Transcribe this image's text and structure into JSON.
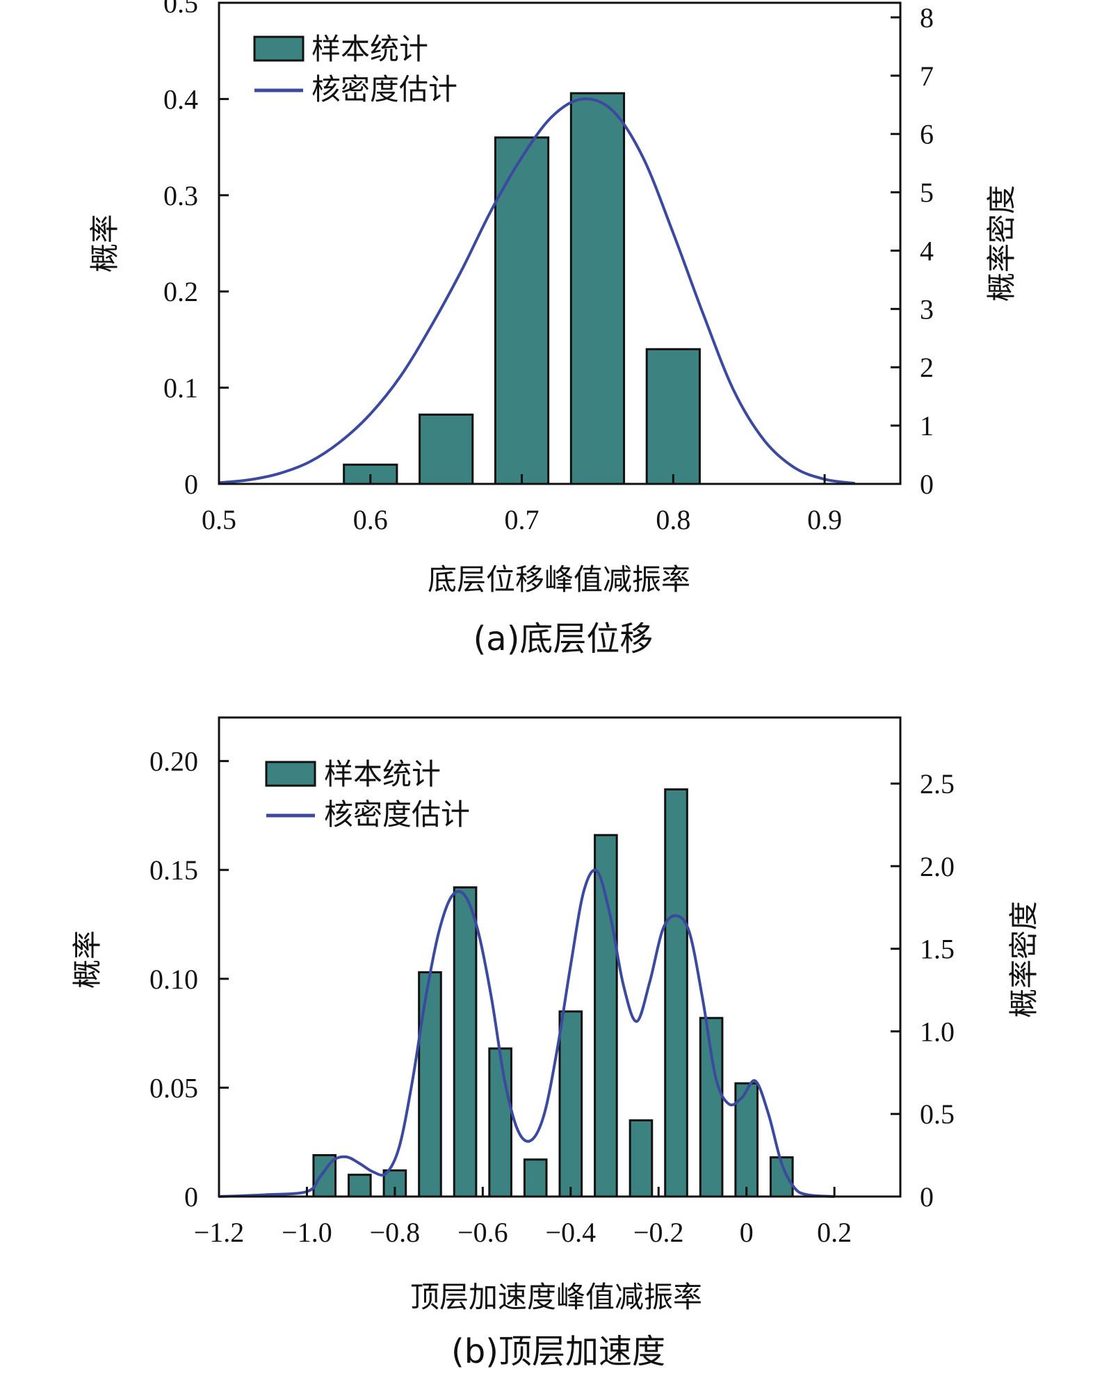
{
  "colors": {
    "bar": "#3b8280",
    "kde": "#3b4a9e",
    "axis": "#111111"
  },
  "chart_data": [
    {
      "type": "bar",
      "caption": "(a)底层位移",
      "xlabel": "底层位移峰值减振率",
      "ylabel_left": "概率",
      "ylabel_right": "概率密度",
      "xlim": [
        0.5,
        0.95
      ],
      "ylim_left": [
        0,
        0.5
      ],
      "ylim_right": [
        0,
        8.25
      ],
      "x_ticks": [
        "0.5",
        "0.6",
        "0.7",
        "0.8",
        "0.9"
      ],
      "y_left_ticks": [
        "0",
        "0.1",
        "0.2",
        "0.3",
        "0.4",
        "0.5"
      ],
      "y_right_ticks": [
        "0",
        "1",
        "2",
        "3",
        "4",
        "5",
        "6",
        "7",
        "8"
      ],
      "legend": {
        "position": "top-left",
        "bar_label": "样本统计",
        "line_label": "核密度估计"
      },
      "bar_width": 0.035,
      "bars": [
        {
          "x": 0.6,
          "value": 0.02
        },
        {
          "x": 0.65,
          "value": 0.072
        },
        {
          "x": 0.7,
          "value": 0.36
        },
        {
          "x": 0.75,
          "value": 0.406
        },
        {
          "x": 0.8,
          "value": 0.14
        }
      ],
      "kde": {
        "x": [
          0.5,
          0.52,
          0.54,
          0.56,
          0.58,
          0.6,
          0.62,
          0.64,
          0.66,
          0.68,
          0.7,
          0.72,
          0.74,
          0.76,
          0.78,
          0.8,
          0.82,
          0.84,
          0.86,
          0.88,
          0.9,
          0.92
        ],
        "y": [
          0.02,
          0.07,
          0.18,
          0.38,
          0.72,
          1.2,
          1.85,
          2.7,
          3.65,
          4.7,
          5.6,
          6.3,
          6.6,
          6.4,
          5.6,
          4.3,
          2.9,
          1.6,
          0.75,
          0.28,
          0.08,
          0.01
        ]
      }
    },
    {
      "type": "bar",
      "caption": "(b)顶层加速度",
      "xlabel": "顶层加速度峰值减振率",
      "ylabel_left": "概率",
      "ylabel_right": "概率密度",
      "xlim": [
        -1.2,
        0.35
      ],
      "ylim_left": [
        0,
        0.22
      ],
      "ylim_right": [
        0,
        2.9
      ],
      "x_ticks": [
        "−1.2",
        "−1.0",
        "−0.8",
        "−0.6",
        "−0.4",
        "−0.2",
        "0",
        "0.2"
      ],
      "x_tick_values": [
        -1.2,
        -1.0,
        -0.8,
        -0.6,
        -0.4,
        -0.2,
        0,
        0.2
      ],
      "y_left_ticks": [
        "0",
        "0.05",
        "0.10",
        "0.15",
        "0.20"
      ],
      "y_left_tick_values": [
        0,
        0.05,
        0.1,
        0.15,
        0.2
      ],
      "y_right_ticks": [
        "0",
        "0.5",
        "1.0",
        "1.5",
        "2.0",
        "2.5"
      ],
      "y_right_tick_values": [
        0,
        0.5,
        1.0,
        1.5,
        2.0,
        2.5
      ],
      "legend": {
        "position": "top-left",
        "bar_label": "样本统计",
        "line_label": "核密度估计"
      },
      "bar_width": 0.05,
      "bars": [
        {
          "x": -0.96,
          "value": 0.019
        },
        {
          "x": -0.88,
          "value": 0.01
        },
        {
          "x": -0.8,
          "value": 0.012
        },
        {
          "x": -0.72,
          "value": 0.103
        },
        {
          "x": -0.64,
          "value": 0.142
        },
        {
          "x": -0.56,
          "value": 0.068
        },
        {
          "x": -0.48,
          "value": 0.017
        },
        {
          "x": -0.4,
          "value": 0.085
        },
        {
          "x": -0.32,
          "value": 0.166
        },
        {
          "x": -0.24,
          "value": 0.035
        },
        {
          "x": -0.16,
          "value": 0.187
        },
        {
          "x": -0.08,
          "value": 0.082
        },
        {
          "x": 0.0,
          "value": 0.052
        },
        {
          "x": 0.08,
          "value": 0.018
        }
      ],
      "kde": {
        "x": [
          -1.2,
          -1.1,
          -1.0,
          -0.97,
          -0.94,
          -0.91,
          -0.88,
          -0.85,
          -0.82,
          -0.79,
          -0.76,
          -0.73,
          -0.7,
          -0.67,
          -0.64,
          -0.61,
          -0.58,
          -0.55,
          -0.52,
          -0.49,
          -0.46,
          -0.43,
          -0.4,
          -0.37,
          -0.34,
          -0.31,
          -0.28,
          -0.25,
          -0.22,
          -0.19,
          -0.16,
          -0.13,
          -0.1,
          -0.07,
          -0.04,
          -0.01,
          0.02,
          0.05,
          0.08,
          0.11,
          0.14,
          0.2
        ],
        "y": [
          0.0,
          0.01,
          0.03,
          0.12,
          0.22,
          0.24,
          0.2,
          0.15,
          0.14,
          0.3,
          0.7,
          1.2,
          1.6,
          1.82,
          1.82,
          1.6,
          1.2,
          0.7,
          0.4,
          0.34,
          0.5,
          0.9,
          1.4,
          1.85,
          1.97,
          1.7,
          1.28,
          1.06,
          1.3,
          1.62,
          1.7,
          1.6,
          1.2,
          0.72,
          0.56,
          0.6,
          0.7,
          0.5,
          0.2,
          0.05,
          0.01,
          0.0
        ]
      }
    }
  ]
}
